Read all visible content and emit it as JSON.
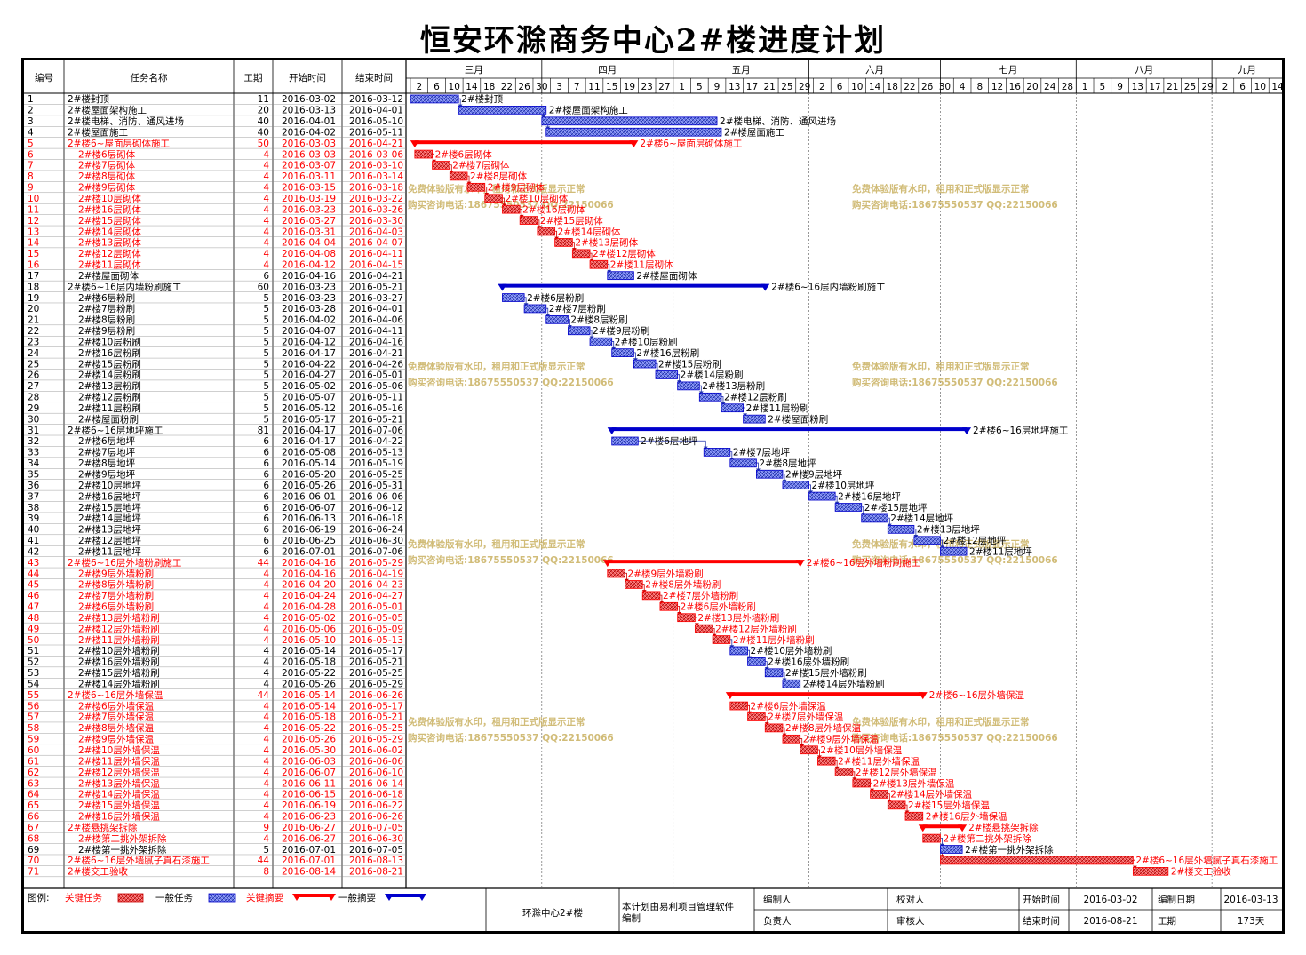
{
  "title": "恒安环滁商务中心2#楼进度计划",
  "colors": {
    "critical": "#ff0000",
    "normal": "#0000cc",
    "grid": "#000000",
    "task_fill_critical": "#ee4444",
    "task_fill_normal": "#5a6be0"
  },
  "headers": {
    "id": "编号",
    "name": "任务名称",
    "duration": "工期",
    "start": "开始时间",
    "end": "结束时间"
  },
  "months": [
    {
      "label": "三月",
      "start": "2016-03-01"
    },
    {
      "label": "四月",
      "start": "2016-04-01"
    },
    {
      "label": "五月",
      "start": "2016-05-01"
    },
    {
      "label": "六月",
      "start": "2016-06-01"
    },
    {
      "label": "七月",
      "start": "2016-07-01"
    },
    {
      "label": "八月",
      "start": "2016-08-01"
    },
    {
      "label": "九月",
      "start": "2016-09-01"
    }
  ],
  "timeline": {
    "from": "2016-03-01",
    "to": "2016-09-16"
  },
  "day_ticks": [
    "2016-03-02",
    "2016-03-06",
    "2016-03-10",
    "2016-03-14",
    "2016-03-18",
    "2016-03-22",
    "2016-03-26",
    "2016-03-30",
    "2016-04-03",
    "2016-04-07",
    "2016-04-11",
    "2016-04-15",
    "2016-04-19",
    "2016-04-23",
    "2016-04-27",
    "2016-05-01",
    "2016-05-05",
    "2016-05-09",
    "2016-05-13",
    "2016-05-17",
    "2016-05-21",
    "2016-05-25",
    "2016-05-29",
    "2016-06-02",
    "2016-06-06",
    "2016-06-10",
    "2016-06-14",
    "2016-06-18",
    "2016-06-22",
    "2016-06-26",
    "2016-06-30",
    "2016-07-04",
    "2016-07-08",
    "2016-07-12",
    "2016-07-16",
    "2016-07-20",
    "2016-07-24",
    "2016-07-28",
    "2016-08-01",
    "2016-08-05",
    "2016-08-09",
    "2016-08-13",
    "2016-08-17",
    "2016-08-21",
    "2016-08-25",
    "2016-08-29",
    "2016-09-02",
    "2016-09-06",
    "2016-09-10",
    "2016-09-14"
  ],
  "tasks": [
    {
      "id": "1",
      "name": "2#楼封顶",
      "dur": "11",
      "start": "2016-03-02",
      "end": "2016-03-12",
      "crit": false,
      "sum": false,
      "lvl": 0
    },
    {
      "id": "2",
      "name": "2#楼屋面架构施工",
      "dur": "20",
      "start": "2016-03-13",
      "end": "2016-04-01",
      "crit": false,
      "sum": false,
      "lvl": 0
    },
    {
      "id": "3",
      "name": "2#楼电梯、消防、通风进场",
      "dur": "40",
      "start": "2016-04-01",
      "end": "2016-05-10",
      "crit": false,
      "sum": false,
      "lvl": 0
    },
    {
      "id": "4",
      "name": "2#楼屋面施工",
      "dur": "40",
      "start": "2016-04-02",
      "end": "2016-05-11",
      "crit": false,
      "sum": false,
      "lvl": 0
    },
    {
      "id": "5",
      "name": "2#楼6~屋面层砌体施工",
      "dur": "50",
      "start": "2016-03-03",
      "end": "2016-04-21",
      "crit": true,
      "sum": true,
      "lvl": 0
    },
    {
      "id": "6",
      "name": "2#楼6层砌体",
      "dur": "4",
      "start": "2016-03-03",
      "end": "2016-03-06",
      "crit": true,
      "sum": false,
      "lvl": 1
    },
    {
      "id": "7",
      "name": "2#楼7层砌体",
      "dur": "4",
      "start": "2016-03-07",
      "end": "2016-03-10",
      "crit": true,
      "sum": false,
      "lvl": 1
    },
    {
      "id": "8",
      "name": "2#楼8层砌体",
      "dur": "4",
      "start": "2016-03-11",
      "end": "2016-03-14",
      "crit": true,
      "sum": false,
      "lvl": 1
    },
    {
      "id": "9",
      "name": "2#楼9层砌体",
      "dur": "4",
      "start": "2016-03-15",
      "end": "2016-03-18",
      "crit": true,
      "sum": false,
      "lvl": 1
    },
    {
      "id": "10",
      "name": "2#楼10层砌体",
      "dur": "4",
      "start": "2016-03-19",
      "end": "2016-03-22",
      "crit": true,
      "sum": false,
      "lvl": 1
    },
    {
      "id": "11",
      "name": "2#楼16层砌体",
      "dur": "4",
      "start": "2016-03-23",
      "end": "2016-03-26",
      "crit": true,
      "sum": false,
      "lvl": 1
    },
    {
      "id": "12",
      "name": "2#楼15层砌体",
      "dur": "4",
      "start": "2016-03-27",
      "end": "2016-03-30",
      "crit": true,
      "sum": false,
      "lvl": 1
    },
    {
      "id": "13",
      "name": "2#楼14层砌体",
      "dur": "4",
      "start": "2016-03-31",
      "end": "2016-04-03",
      "crit": true,
      "sum": false,
      "lvl": 1
    },
    {
      "id": "14",
      "name": "2#楼13层砌体",
      "dur": "4",
      "start": "2016-04-04",
      "end": "2016-04-07",
      "crit": true,
      "sum": false,
      "lvl": 1
    },
    {
      "id": "15",
      "name": "2#楼12层砌体",
      "dur": "4",
      "start": "2016-04-08",
      "end": "2016-04-11",
      "crit": true,
      "sum": false,
      "lvl": 1
    },
    {
      "id": "16",
      "name": "2#楼11层砌体",
      "dur": "4",
      "start": "2016-04-12",
      "end": "2016-04-15",
      "crit": true,
      "sum": false,
      "lvl": 1
    },
    {
      "id": "17",
      "name": "2#楼屋面砌体",
      "dur": "6",
      "start": "2016-04-16",
      "end": "2016-04-21",
      "crit": false,
      "sum": false,
      "lvl": 1
    },
    {
      "id": "18",
      "name": "2#楼6~16层内墙粉刷施工",
      "dur": "60",
      "start": "2016-03-23",
      "end": "2016-05-21",
      "crit": false,
      "sum": true,
      "lvl": 0
    },
    {
      "id": "19",
      "name": "2#楼6层粉刷",
      "dur": "5",
      "start": "2016-03-23",
      "end": "2016-03-27",
      "crit": false,
      "sum": false,
      "lvl": 1
    },
    {
      "id": "20",
      "name": "2#楼7层粉刷",
      "dur": "5",
      "start": "2016-03-28",
      "end": "2016-04-01",
      "crit": false,
      "sum": false,
      "lvl": 1
    },
    {
      "id": "21",
      "name": "2#楼8层粉刷",
      "dur": "5",
      "start": "2016-04-02",
      "end": "2016-04-06",
      "crit": false,
      "sum": false,
      "lvl": 1
    },
    {
      "id": "22",
      "name": "2#楼9层粉刷",
      "dur": "5",
      "start": "2016-04-07",
      "end": "2016-04-11",
      "crit": false,
      "sum": false,
      "lvl": 1
    },
    {
      "id": "23",
      "name": "2#楼10层粉刷",
      "dur": "5",
      "start": "2016-04-12",
      "end": "2016-04-16",
      "crit": false,
      "sum": false,
      "lvl": 1
    },
    {
      "id": "24",
      "name": "2#楼16层粉刷",
      "dur": "5",
      "start": "2016-04-17",
      "end": "2016-04-21",
      "crit": false,
      "sum": false,
      "lvl": 1
    },
    {
      "id": "25",
      "name": "2#楼15层粉刷",
      "dur": "5",
      "start": "2016-04-22",
      "end": "2016-04-26",
      "crit": false,
      "sum": false,
      "lvl": 1
    },
    {
      "id": "26",
      "name": "2#楼14层粉刷",
      "dur": "5",
      "start": "2016-04-27",
      "end": "2016-05-01",
      "crit": false,
      "sum": false,
      "lvl": 1
    },
    {
      "id": "27",
      "name": "2#楼13层粉刷",
      "dur": "5",
      "start": "2016-05-02",
      "end": "2016-05-06",
      "crit": false,
      "sum": false,
      "lvl": 1
    },
    {
      "id": "28",
      "name": "2#楼12层粉刷",
      "dur": "5",
      "start": "2016-05-07",
      "end": "2016-05-11",
      "crit": false,
      "sum": false,
      "lvl": 1
    },
    {
      "id": "29",
      "name": "2#楼11层粉刷",
      "dur": "5",
      "start": "2016-05-12",
      "end": "2016-05-16",
      "crit": false,
      "sum": false,
      "lvl": 1
    },
    {
      "id": "30",
      "name": "2#楼屋面粉刷",
      "dur": "5",
      "start": "2016-05-17",
      "end": "2016-05-21",
      "crit": false,
      "sum": false,
      "lvl": 1
    },
    {
      "id": "31",
      "name": "2#楼6~16层地坪施工",
      "dur": "81",
      "start": "2016-04-17",
      "end": "2016-07-06",
      "crit": false,
      "sum": true,
      "lvl": 0
    },
    {
      "id": "32",
      "name": "2#楼6层地坪",
      "dur": "6",
      "start": "2016-04-17",
      "end": "2016-04-22",
      "crit": false,
      "sum": false,
      "lvl": 1
    },
    {
      "id": "33",
      "name": "2#楼7层地坪",
      "dur": "6",
      "start": "2016-05-08",
      "end": "2016-05-13",
      "crit": false,
      "sum": false,
      "lvl": 1
    },
    {
      "id": "34",
      "name": "2#楼8层地坪",
      "dur": "6",
      "start": "2016-05-14",
      "end": "2016-05-19",
      "crit": false,
      "sum": false,
      "lvl": 1
    },
    {
      "id": "35",
      "name": "2#楼9层地坪",
      "dur": "6",
      "start": "2016-05-20",
      "end": "2016-05-25",
      "crit": false,
      "sum": false,
      "lvl": 1
    },
    {
      "id": "36",
      "name": "2#楼10层地坪",
      "dur": "6",
      "start": "2016-05-26",
      "end": "2016-05-31",
      "crit": false,
      "sum": false,
      "lvl": 1
    },
    {
      "id": "37",
      "name": "2#楼16层地坪",
      "dur": "6",
      "start": "2016-06-01",
      "end": "2016-06-06",
      "crit": false,
      "sum": false,
      "lvl": 1
    },
    {
      "id": "38",
      "name": "2#楼15层地坪",
      "dur": "6",
      "start": "2016-06-07",
      "end": "2016-06-12",
      "crit": false,
      "sum": false,
      "lvl": 1
    },
    {
      "id": "39",
      "name": "2#楼14层地坪",
      "dur": "6",
      "start": "2016-06-13",
      "end": "2016-06-18",
      "crit": false,
      "sum": false,
      "lvl": 1
    },
    {
      "id": "40",
      "name": "2#楼13层地坪",
      "dur": "6",
      "start": "2016-06-19",
      "end": "2016-06-24",
      "crit": false,
      "sum": false,
      "lvl": 1
    },
    {
      "id": "41",
      "name": "2#楼12层地坪",
      "dur": "6",
      "start": "2016-06-25",
      "end": "2016-06-30",
      "crit": false,
      "sum": false,
      "lvl": 1
    },
    {
      "id": "42",
      "name": "2#楼11层地坪",
      "dur": "6",
      "start": "2016-07-01",
      "end": "2016-07-06",
      "crit": false,
      "sum": false,
      "lvl": 1
    },
    {
      "id": "43",
      "name": "2#楼6~16层外墙粉刷施工",
      "dur": "44",
      "start": "2016-04-16",
      "end": "2016-05-29",
      "crit": true,
      "sum": true,
      "lvl": 0
    },
    {
      "id": "44",
      "name": "2#楼9层外墙粉刷",
      "dur": "4",
      "start": "2016-04-16",
      "end": "2016-04-19",
      "crit": true,
      "sum": false,
      "lvl": 1
    },
    {
      "id": "45",
      "name": "2#楼8层外墙粉刷",
      "dur": "4",
      "start": "2016-04-20",
      "end": "2016-04-23",
      "crit": true,
      "sum": false,
      "lvl": 1
    },
    {
      "id": "46",
      "name": "2#楼7层外墙粉刷",
      "dur": "4",
      "start": "2016-04-24",
      "end": "2016-04-27",
      "crit": true,
      "sum": false,
      "lvl": 1
    },
    {
      "id": "47",
      "name": "2#楼6层外墙粉刷",
      "dur": "4",
      "start": "2016-04-28",
      "end": "2016-05-01",
      "crit": true,
      "sum": false,
      "lvl": 1
    },
    {
      "id": "48",
      "name": "2#楼13层外墙粉刷",
      "dur": "4",
      "start": "2016-05-02",
      "end": "2016-05-05",
      "crit": true,
      "sum": false,
      "lvl": 1
    },
    {
      "id": "49",
      "name": "2#楼12层外墙粉刷",
      "dur": "4",
      "start": "2016-05-06",
      "end": "2016-05-09",
      "crit": true,
      "sum": false,
      "lvl": 1
    },
    {
      "id": "50",
      "name": "2#楼11层外墙粉刷",
      "dur": "4",
      "start": "2016-05-10",
      "end": "2016-05-13",
      "crit": true,
      "sum": false,
      "lvl": 1
    },
    {
      "id": "51",
      "name": "2#楼10层外墙粉刷",
      "dur": "4",
      "start": "2016-05-14",
      "end": "2016-05-17",
      "crit": false,
      "sum": false,
      "lvl": 1
    },
    {
      "id": "52",
      "name": "2#楼16层外墙粉刷",
      "dur": "4",
      "start": "2016-05-18",
      "end": "2016-05-21",
      "crit": false,
      "sum": false,
      "lvl": 1
    },
    {
      "id": "53",
      "name": "2#楼15层外墙粉刷",
      "dur": "4",
      "start": "2016-05-22",
      "end": "2016-05-25",
      "crit": false,
      "sum": false,
      "lvl": 1
    },
    {
      "id": "54",
      "name": "2#楼14层外墙粉刷",
      "dur": "4",
      "start": "2016-05-26",
      "end": "2016-05-29",
      "crit": false,
      "sum": false,
      "lvl": 1
    },
    {
      "id": "55",
      "name": "2#楼6~16层外墙保温",
      "dur": "44",
      "start": "2016-05-14",
      "end": "2016-06-26",
      "crit": true,
      "sum": true,
      "lvl": 0
    },
    {
      "id": "56",
      "name": "2#楼6层外墙保温",
      "dur": "4",
      "start": "2016-05-14",
      "end": "2016-05-17",
      "crit": true,
      "sum": false,
      "lvl": 1
    },
    {
      "id": "57",
      "name": "2#楼7层外墙保温",
      "dur": "4",
      "start": "2016-05-18",
      "end": "2016-05-21",
      "crit": true,
      "sum": false,
      "lvl": 1
    },
    {
      "id": "58",
      "name": "2#楼8层外墙保温",
      "dur": "4",
      "start": "2016-05-22",
      "end": "2016-05-25",
      "crit": true,
      "sum": false,
      "lvl": 1
    },
    {
      "id": "59",
      "name": "2#楼9层外墙保温",
      "dur": "4",
      "start": "2016-05-26",
      "end": "2016-05-29",
      "crit": true,
      "sum": false,
      "lvl": 1
    },
    {
      "id": "60",
      "name": "2#楼10层外墙保温",
      "dur": "4",
      "start": "2016-05-30",
      "end": "2016-06-02",
      "crit": true,
      "sum": false,
      "lvl": 1
    },
    {
      "id": "61",
      "name": "2#楼11层外墙保温",
      "dur": "4",
      "start": "2016-06-03",
      "end": "2016-06-06",
      "crit": true,
      "sum": false,
      "lvl": 1
    },
    {
      "id": "62",
      "name": "2#楼12层外墙保温",
      "dur": "4",
      "start": "2016-06-07",
      "end": "2016-06-10",
      "crit": true,
      "sum": false,
      "lvl": 1
    },
    {
      "id": "63",
      "name": "2#楼13层外墙保温",
      "dur": "4",
      "start": "2016-06-11",
      "end": "2016-06-14",
      "crit": true,
      "sum": false,
      "lvl": 1
    },
    {
      "id": "64",
      "name": "2#楼14层外墙保温",
      "dur": "4",
      "start": "2016-06-15",
      "end": "2016-06-18",
      "crit": true,
      "sum": false,
      "lvl": 1
    },
    {
      "id": "65",
      "name": "2#楼15层外墙保温",
      "dur": "4",
      "start": "2016-06-19",
      "end": "2016-06-22",
      "crit": true,
      "sum": false,
      "lvl": 1
    },
    {
      "id": "66",
      "name": "2#楼16层外墙保温",
      "dur": "4",
      "start": "2016-06-23",
      "end": "2016-06-26",
      "crit": true,
      "sum": false,
      "lvl": 1
    },
    {
      "id": "67",
      "name": "2#楼悬挑架拆除",
      "dur": "9",
      "start": "2016-06-27",
      "end": "2016-07-05",
      "crit": true,
      "sum": true,
      "lvl": 0
    },
    {
      "id": "68",
      "name": "2#楼第二挑外架拆除",
      "dur": "4",
      "start": "2016-06-27",
      "end": "2016-06-30",
      "crit": true,
      "sum": false,
      "lvl": 1
    },
    {
      "id": "69",
      "name": "2#楼第一挑外架拆除",
      "dur": "5",
      "start": "2016-07-01",
      "end": "2016-07-05",
      "crit": false,
      "sum": false,
      "lvl": 1
    },
    {
      "id": "70",
      "name": "2#楼6~16层外墙腻子真石漆施工",
      "dur": "44",
      "start": "2016-07-01",
      "end": "2016-08-13",
      "crit": true,
      "sum": false,
      "lvl": 0
    },
    {
      "id": "71",
      "name": "2#楼交工验收",
      "dur": "8",
      "start": "2016-08-14",
      "end": "2016-08-21",
      "crit": true,
      "sum": false,
      "lvl": 0
    }
  ],
  "watermark": {
    "line1": "免费体验版有水印，租用和正式版显示正常",
    "line2": "购买咨询电话:18675550537 QQ:22150066"
  },
  "legend": {
    "label": "图例:",
    "critical_task": "关键任务",
    "normal_task": "一般任务",
    "critical_summary": "关键摘要",
    "normal_summary": "一般摘要"
  },
  "footer": {
    "project": "环滁中心2#楼",
    "software_note": "本计划由易利项目管理软件编制",
    "compiler_label": "编制人",
    "checker_label": "校对人",
    "owner_label": "负责人",
    "reviewer_label": "审核人",
    "start_label": "开始时间",
    "start_value": "2016-03-02",
    "date_label": "编制日期",
    "date_value": "2016-03-13",
    "end_label": "结束时间",
    "end_value": "2016-08-21",
    "duration_label": "工期",
    "duration_value": "173天"
  }
}
